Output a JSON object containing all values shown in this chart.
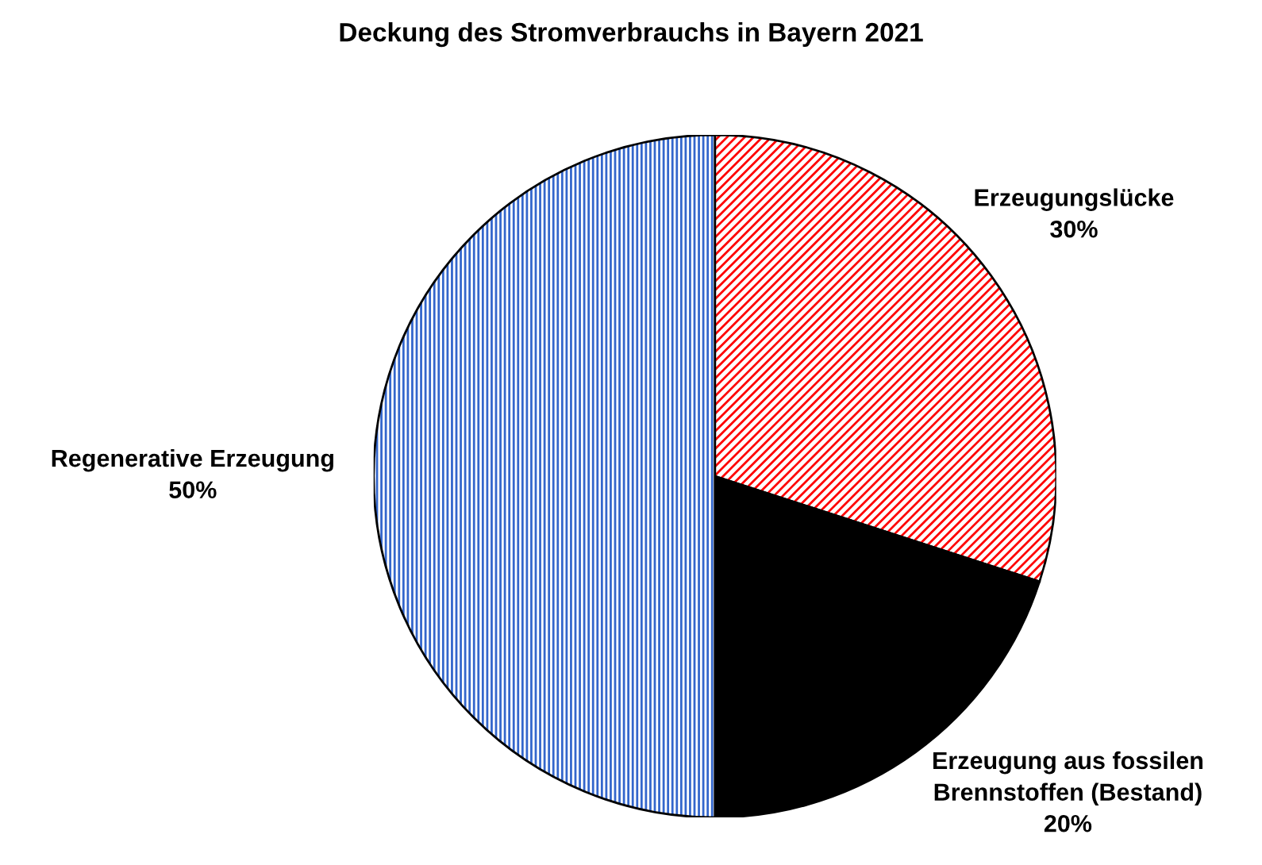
{
  "chart_data": {
    "type": "pie",
    "title": "Deckung des Stromverbrauchs in Bayern 2021",
    "categories": [
      "Erzeugungslücke",
      "Erzeugung aus fossilen\nBrennstoffen (Bestand)",
      "Regenerative Erzeugung"
    ],
    "values": [
      30,
      20,
      50
    ],
    "value_labels": [
      "30%",
      "20%",
      "50%"
    ],
    "colors": [
      "#ff0000",
      "#000000",
      "#3366cc"
    ]
  }
}
